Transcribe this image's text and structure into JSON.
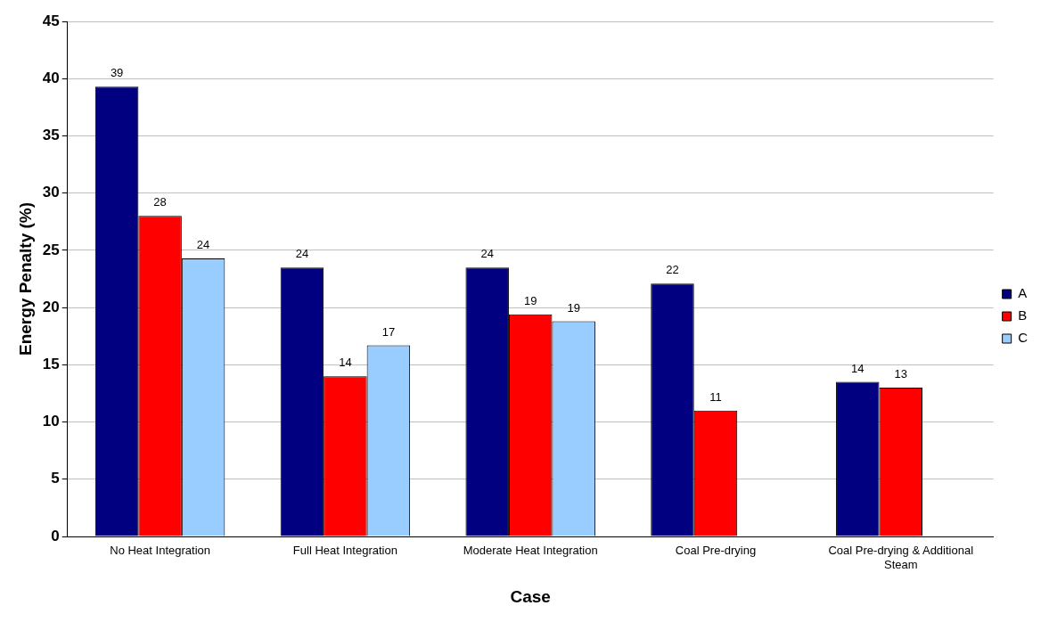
{
  "chart_data": {
    "type": "bar",
    "xlabel": "Case",
    "ylabel": "Energy Penalty (%)",
    "categories": [
      "No Heat Integration",
      "Full Heat Integration",
      "Moderate Heat Integration",
      "Coal Pre-drying",
      "Coal Pre-drying & Additional Steam"
    ],
    "series": [
      {
        "name": "A",
        "color": "#000080",
        "values": [
          39.3,
          23.5,
          23.5,
          22.1,
          13.5
        ],
        "value_labels": [
          "39",
          "24",
          "24",
          "22",
          "14"
        ]
      },
      {
        "name": "B",
        "color": "#ff0000",
        "values": [
          28,
          14,
          19.4,
          11,
          13
        ],
        "value_labels": [
          "28",
          "14",
          "19",
          "11",
          "13"
        ]
      },
      {
        "name": "C",
        "color": "#99ccff",
        "values": [
          24.3,
          16.7,
          18.8,
          null,
          null
        ],
        "value_labels": [
          "24",
          "17",
          "19",
          null,
          null
        ]
      }
    ],
    "ylim": [
      0,
      45
    ],
    "yticks": [
      0,
      5,
      10,
      15,
      20,
      25,
      30,
      35,
      40,
      45
    ],
    "grid": "y",
    "legend": "right"
  }
}
